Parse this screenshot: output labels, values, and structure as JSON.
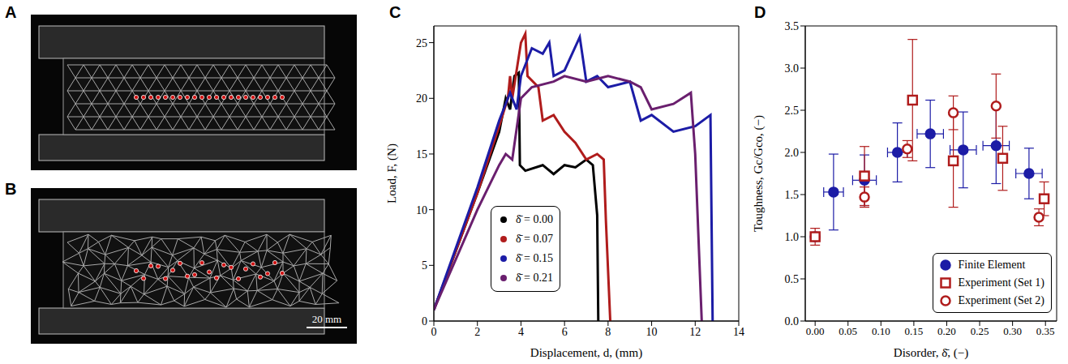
{
  "images": [
    {
      "label": "A"
    },
    {
      "label": "B",
      "scale_bar": "20 mm"
    }
  ],
  "chart_data": [
    {
      "label": "C",
      "type": "line",
      "x_label": "Displacement, d, (mm)",
      "y_label": "Load, F, (N)",
      "xlim": [
        0,
        14
      ],
      "xticks": [
        0,
        2,
        4,
        6,
        8,
        10,
        12,
        14
      ],
      "ylim": [
        0,
        26.5
      ],
      "yticks": [
        0,
        5,
        10,
        15,
        20,
        25
      ],
      "legend": "lower center",
      "series": [
        {
          "name": "δ̄ = 0.00",
          "color": "#000000",
          "x": [
            0,
            2,
            3,
            3.3,
            3.5,
            3.7,
            3.9,
            3.95,
            4.2,
            5,
            5.5,
            6,
            6.5,
            7,
            7.3,
            7.5,
            7.55
          ],
          "values": [
            1,
            11.5,
            17,
            20,
            19,
            22,
            22.3,
            14,
            13.5,
            14,
            13.2,
            14,
            13.8,
            14.5,
            14,
            9.5,
            0
          ]
        },
        {
          "name": "δ̄ = 0.07",
          "color": "#b01c1c",
          "x": [
            0,
            2,
            3,
            3.4,
            3.5,
            3.6,
            4,
            4.2,
            4.3,
            4.8,
            5,
            5.5,
            6,
            6.5,
            7,
            7.5,
            7.8,
            7.9,
            8.1
          ],
          "values": [
            1,
            11.5,
            17.5,
            20,
            22,
            20,
            25,
            25.8,
            22,
            21,
            18,
            18.5,
            17,
            16,
            14.5,
            15,
            14.5,
            9,
            0
          ]
        },
        {
          "name": "δ̄ = 0.15",
          "color": "#1c1ca6",
          "x": [
            0,
            2,
            3,
            3.5,
            3.8,
            4,
            4.5,
            5,
            5.3,
            5.5,
            6,
            6.7,
            7,
            7.5,
            8,
            9,
            9.5,
            10,
            11,
            12,
            12.7,
            12.8
          ],
          "values": [
            1,
            12,
            18,
            20.5,
            19,
            22,
            24.5,
            24,
            25,
            22,
            22.5,
            25.5,
            21.5,
            22,
            21,
            21.5,
            18,
            18.5,
            17,
            17.5,
            18.5,
            0
          ]
        },
        {
          "name": "δ̄ = 0.21",
          "color": "#6a1f6e",
          "x": [
            0,
            2,
            3,
            3.3,
            3.6,
            4,
            4.5,
            5.5,
            6,
            7,
            8,
            9,
            9.5,
            10,
            11,
            11.8,
            12,
            12.3
          ],
          "values": [
            1,
            10,
            14,
            15,
            14.5,
            20,
            21,
            21.5,
            22,
            21.5,
            22,
            21.5,
            21,
            19,
            19.5,
            20.5,
            15,
            0
          ]
        }
      ]
    },
    {
      "label": "D",
      "type": "scatter",
      "x_label": "Disorder, δ̄, (−)",
      "y_label": "Toughness, Gc/Gco, (−)",
      "xlim": [
        -0.015,
        0.367
      ],
      "xticks": [
        {
          "value": 0,
          "label": "0.00"
        },
        {
          "value": 0.05,
          "label": "0.05"
        },
        {
          "value": 0.1,
          "label": "0.10"
        },
        {
          "value": 0.15,
          "label": "0.15"
        },
        {
          "value": 0.2,
          "label": "0.20"
        },
        {
          "value": 0.25,
          "label": "0.25"
        },
        {
          "value": 0.3,
          "label": "0.30"
        },
        {
          "value": 0.35,
          "label": "0.35"
        }
      ],
      "ylim": [
        0,
        3.5
      ],
      "yticks": [
        {
          "value": 0,
          "label": "0.0"
        },
        {
          "value": 0.5,
          "label": "0.5"
        },
        {
          "value": 1,
          "label": "1.0"
        },
        {
          "value": 1.5,
          "label": "1.5"
        },
        {
          "value": 2,
          "label": "2.0"
        },
        {
          "value": 2.5,
          "label": "2.5"
        },
        {
          "value": 3,
          "label": "3.0"
        },
        {
          "value": 3.5,
          "label": "3.5"
        }
      ],
      "legend": "lower right",
      "series": [
        {
          "name": "Finite Element",
          "color": "#1c1ca6",
          "marker": "filled_circle",
          "x": [
            0,
            0.028,
            0.075,
            0.125,
            0.175,
            0.225,
            0.275,
            0.325
          ],
          "values": [
            1.0,
            1.53,
            1.67,
            2.0,
            2.22,
            2.03,
            2.08,
            1.75
          ],
          "x_error": [
            0,
            0.015,
            0.018,
            0.015,
            0.02,
            0.02,
            0.02,
            0.02
          ],
          "y_error": [
            0.05,
            0.45,
            0.3,
            0.35,
            0.4,
            0.45,
            0.45,
            0.3
          ]
        },
        {
          "name": "Experiment (Set 1)",
          "color": "#b01c1c",
          "marker": "open_square",
          "x": [
            0,
            0.075,
            0.148,
            0.21,
            0.285,
            0.348
          ],
          "values": [
            1.0,
            1.72,
            2.62,
            1.9,
            1.93,
            1.45
          ],
          "x_error": [
            0,
            0,
            0,
            0,
            0,
            0
          ],
          "y_error": [
            0.1,
            0.35,
            0.72,
            0.55,
            0.38,
            0.2
          ]
        },
        {
          "name": "Experiment (Set 2)",
          "color": "#b01c1c",
          "marker": "open_circle",
          "x": [
            0.075,
            0.14,
            0.21,
            0.275,
            0.34
          ],
          "values": [
            1.47,
            2.04,
            2.47,
            2.55,
            1.23
          ],
          "x_error": [
            0,
            0,
            0,
            0,
            0
          ],
          "y_error": [
            0.12,
            0.1,
            0.2,
            0.38,
            0.1
          ]
        }
      ]
    }
  ]
}
